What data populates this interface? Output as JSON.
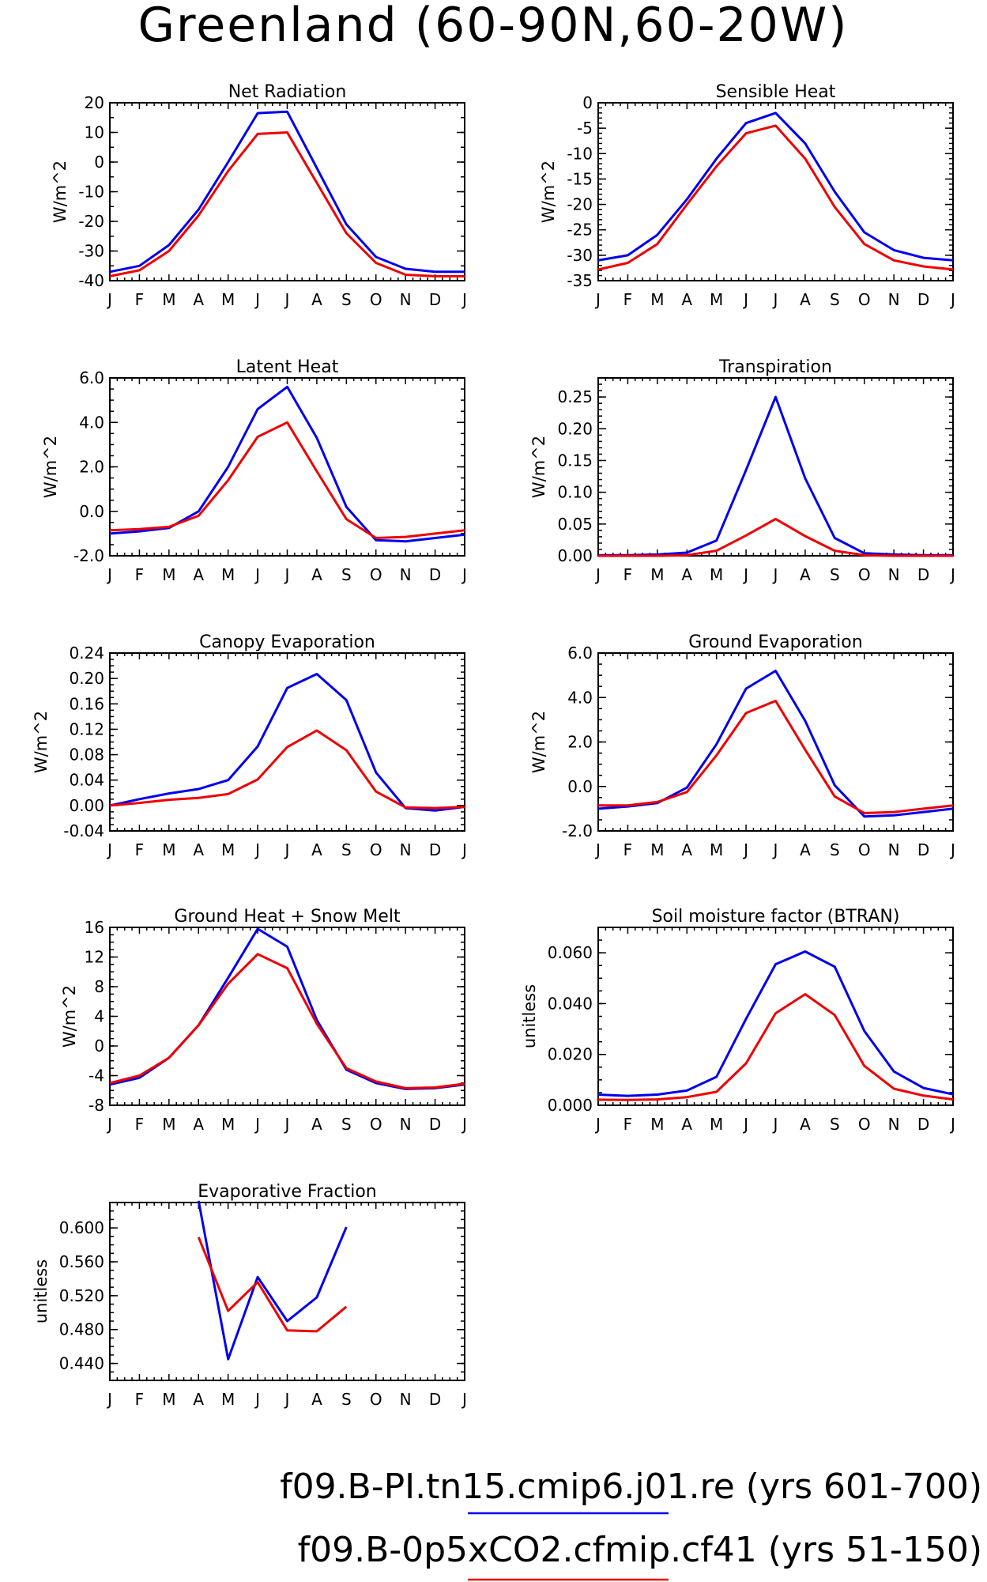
{
  "title": "Greenland (60-90N,60-20W)",
  "colors": {
    "blue": "#0000ee",
    "red": "#ee0000"
  },
  "legend": [
    {
      "label": "f09.B-PI.tn15.cmip6.j01.re (yrs 601-700)",
      "color": "#0000ee"
    },
    {
      "label": "f09.B-0p5xCO2.cfmip.cf41 (yrs 51-150)",
      "color": "#ee0000"
    }
  ],
  "month_labels": [
    "J",
    "F",
    "M",
    "A",
    "M",
    "J",
    "J",
    "A",
    "S",
    "O",
    "N",
    "D",
    "J"
  ],
  "chart_data": [
    {
      "type": "line",
      "title": "Net Radiation",
      "ylabel": "W/m^2",
      "ylim": [
        -40,
        20
      ],
      "yticks": [
        20,
        10,
        0,
        -10,
        -20,
        -30,
        -40
      ],
      "ytick_labels": [
        "20",
        "10",
        "0",
        "-10",
        "-20",
        "-30",
        "-40"
      ],
      "minor_step": 5,
      "x": [
        1,
        2,
        3,
        4,
        5,
        6,
        7,
        8,
        9,
        10,
        11,
        12,
        13
      ],
      "series": [
        {
          "color": "#0000ee",
          "values": [
            -37,
            -35,
            -28,
            -16,
            0,
            16.5,
            17,
            -2,
            -21,
            -32,
            -36,
            -37,
            -37
          ]
        },
        {
          "color": "#ee0000",
          "values": [
            -38.5,
            -36.5,
            -30,
            -18,
            -3,
            9.5,
            10,
            -7,
            -24,
            -34,
            -38,
            -38.5,
            -38.5
          ]
        }
      ]
    },
    {
      "type": "line",
      "title": "Sensible Heat",
      "ylabel": "W/m^2",
      "ylim": [
        -35,
        0
      ],
      "yticks": [
        0,
        -5,
        -10,
        -15,
        -20,
        -25,
        -30,
        -35
      ],
      "ytick_labels": [
        "0",
        "-5",
        "-10",
        "-15",
        "-20",
        "-25",
        "-30",
        "-35"
      ],
      "minor_step": 1,
      "x": [
        1,
        2,
        3,
        4,
        5,
        6,
        7,
        8,
        9,
        10,
        11,
        12,
        13
      ],
      "series": [
        {
          "color": "#0000ee",
          "values": [
            -31,
            -30,
            -26,
            -19,
            -11,
            -4,
            -2,
            -8,
            -17.5,
            -25.5,
            -29,
            -30.5,
            -31
          ]
        },
        {
          "color": "#ee0000",
          "values": [
            -32.8,
            -31.5,
            -27.8,
            -20,
            -12.5,
            -6,
            -4.5,
            -11,
            -20.5,
            -27.8,
            -31,
            -32.2,
            -32.8
          ]
        }
      ]
    },
    {
      "type": "line",
      "title": "Latent Heat",
      "ylabel": "W/m^2",
      "ylim": [
        -2,
        6
      ],
      "yticks": [
        6,
        4,
        2,
        0,
        -2
      ],
      "ytick_labels": [
        "6.0",
        "4.0",
        "2.0",
        "0.0",
        "-2.0"
      ],
      "minor_step": 0.5,
      "x": [
        1,
        2,
        3,
        4,
        5,
        6,
        7,
        8,
        9,
        10,
        11,
        12,
        13
      ],
      "series": [
        {
          "color": "#0000ee",
          "values": [
            -1.0,
            -0.9,
            -0.75,
            0.0,
            2.0,
            4.6,
            5.6,
            3.3,
            0.2,
            -1.3,
            -1.35,
            -1.2,
            -1.05
          ]
        },
        {
          "color": "#ee0000",
          "values": [
            -0.85,
            -0.8,
            -0.7,
            -0.2,
            1.4,
            3.35,
            4.0,
            1.8,
            -0.35,
            -1.2,
            -1.15,
            -1.0,
            -0.85
          ]
        }
      ]
    },
    {
      "type": "line",
      "title": "Transpiration",
      "ylabel": "W/m^2",
      "ylim": [
        0,
        0.28
      ],
      "yticks": [
        0.25,
        0.2,
        0.15,
        0.1,
        0.05,
        0
      ],
      "ytick_labels": [
        "0.25",
        "0.20",
        "0.15",
        "0.10",
        "0.05",
        "0.00"
      ],
      "minor_step": 0.01,
      "x": [
        1,
        2,
        3,
        4,
        5,
        6,
        7,
        8,
        9,
        10,
        11,
        12,
        13
      ],
      "series": [
        {
          "color": "#0000ee",
          "values": [
            0.001,
            0.001,
            0.002,
            0.005,
            0.024,
            0.135,
            0.25,
            0.122,
            0.028,
            0.004,
            0.002,
            0.001,
            0.001
          ]
        },
        {
          "color": "#ee0000",
          "values": [
            0.0,
            0.0,
            0.0,
            0.001,
            0.008,
            0.032,
            0.058,
            0.031,
            0.008,
            0.001,
            0.0,
            0.0,
            0.0
          ]
        }
      ]
    },
    {
      "type": "line",
      "title": "Canopy Evaporation",
      "ylabel": "W/m^2",
      "ylim": [
        -0.04,
        0.24
      ],
      "yticks": [
        0.24,
        0.2,
        0.16,
        0.12,
        0.08,
        0.04,
        0,
        -0.04
      ],
      "ytick_labels": [
        "0.24",
        "0.20",
        "0.16",
        "0.12",
        "0.08",
        "0.04",
        "0.00",
        "-0.04"
      ],
      "minor_step": 0.01,
      "x": [
        1,
        2,
        3,
        4,
        5,
        6,
        7,
        8,
        9,
        10,
        11,
        12,
        13
      ],
      "series": [
        {
          "color": "#0000ee",
          "values": [
            0.0,
            0.01,
            0.019,
            0.026,
            0.04,
            0.093,
            0.185,
            0.207,
            0.166,
            0.052,
            -0.004,
            -0.008,
            -0.002
          ]
        },
        {
          "color": "#ee0000",
          "values": [
            0.0,
            0.004,
            0.009,
            0.012,
            0.018,
            0.041,
            0.092,
            0.118,
            0.087,
            0.022,
            -0.003,
            -0.004,
            -0.002
          ]
        }
      ]
    },
    {
      "type": "line",
      "title": "Ground Evaporation",
      "ylabel": "W/m^2",
      "ylim": [
        -2,
        6
      ],
      "yticks": [
        6,
        4,
        2,
        0,
        -2
      ],
      "ytick_labels": [
        "6.0",
        "4.0",
        "2.0",
        "0.0",
        "-2.0"
      ],
      "minor_step": 0.5,
      "x": [
        1,
        2,
        3,
        4,
        5,
        6,
        7,
        8,
        9,
        10,
        11,
        12,
        13
      ],
      "series": [
        {
          "color": "#0000ee",
          "values": [
            -1.0,
            -0.9,
            -0.75,
            -0.05,
            1.9,
            4.4,
            5.2,
            2.95,
            0.05,
            -1.35,
            -1.3,
            -1.15,
            -1.0
          ]
        },
        {
          "color": "#ee0000",
          "values": [
            -0.85,
            -0.85,
            -0.7,
            -0.25,
            1.4,
            3.3,
            3.85,
            1.65,
            -0.45,
            -1.2,
            -1.15,
            -1.0,
            -0.85
          ]
        }
      ]
    },
    {
      "type": "line",
      "title": "Ground Heat + Snow Melt",
      "ylabel": "W/m^2",
      "ylim": [
        -8,
        16
      ],
      "yticks": [
        16,
        12,
        8,
        4,
        0,
        -4,
        -8
      ],
      "ytick_labels": [
        "16",
        "12",
        "8",
        "4",
        "0",
        "-4",
        "-8"
      ],
      "minor_step": 1,
      "x": [
        1,
        2,
        3,
        4,
        5,
        6,
        7,
        8,
        9,
        10,
        11,
        12,
        13
      ],
      "series": [
        {
          "color": "#0000ee",
          "values": [
            -5.2,
            -4.3,
            -1.6,
            2.8,
            9.2,
            15.8,
            13.4,
            3.5,
            -3.2,
            -5.0,
            -5.8,
            -5.7,
            -5.2
          ]
        },
        {
          "color": "#ee0000",
          "values": [
            -5.0,
            -4.0,
            -1.6,
            2.8,
            8.4,
            12.4,
            10.5,
            3.0,
            -3.0,
            -4.8,
            -5.7,
            -5.6,
            -5.1
          ]
        }
      ]
    },
    {
      "type": "line",
      "title": "Soil moisture factor (BTRAN)",
      "ylabel": "unitless",
      "ylim": [
        0,
        0.07
      ],
      "yticks": [
        0.06,
        0.04,
        0.02,
        0
      ],
      "ytick_labels": [
        "0.060",
        "0.040",
        "0.020",
        "0.000"
      ],
      "minor_step": 0.005,
      "x": [
        1,
        2,
        3,
        4,
        5,
        6,
        7,
        8,
        9,
        10,
        11,
        12,
        13
      ],
      "series": [
        {
          "color": "#0000ee",
          "values": [
            0.0042,
            0.0037,
            0.0042,
            0.0058,
            0.0112,
            0.034,
            0.0555,
            0.0605,
            0.0545,
            0.0292,
            0.0133,
            0.0068,
            0.0043
          ]
        },
        {
          "color": "#ee0000",
          "values": [
            0.0022,
            0.0021,
            0.0023,
            0.0032,
            0.0053,
            0.0165,
            0.0362,
            0.0437,
            0.0355,
            0.0155,
            0.0065,
            0.0038,
            0.0023
          ]
        }
      ]
    },
    {
      "type": "line",
      "title": "Evaporative Fraction",
      "ylabel": "unitless",
      "ylim": [
        0.42,
        0.63
      ],
      "yticks": [
        0.6,
        0.56,
        0.52,
        0.48,
        0.44
      ],
      "ytick_labels": [
        "0.600",
        "0.560",
        "0.520",
        "0.480",
        "0.440"
      ],
      "minor_step": 0.01,
      "x": [
        1,
        2,
        3,
        4,
        5,
        6,
        7,
        8,
        9,
        10,
        11,
        12,
        13
      ],
      "series": [
        {
          "color": "#0000ee",
          "values": [
            null,
            null,
            null,
            0.632,
            0.445,
            0.542,
            0.49,
            0.518,
            0.601,
            null,
            null,
            null,
            null
          ]
        },
        {
          "color": "#ee0000",
          "values": [
            null,
            null,
            null,
            0.589,
            0.502,
            0.536,
            0.479,
            0.478,
            0.507,
            null,
            null,
            null,
            null
          ]
        }
      ]
    }
  ]
}
